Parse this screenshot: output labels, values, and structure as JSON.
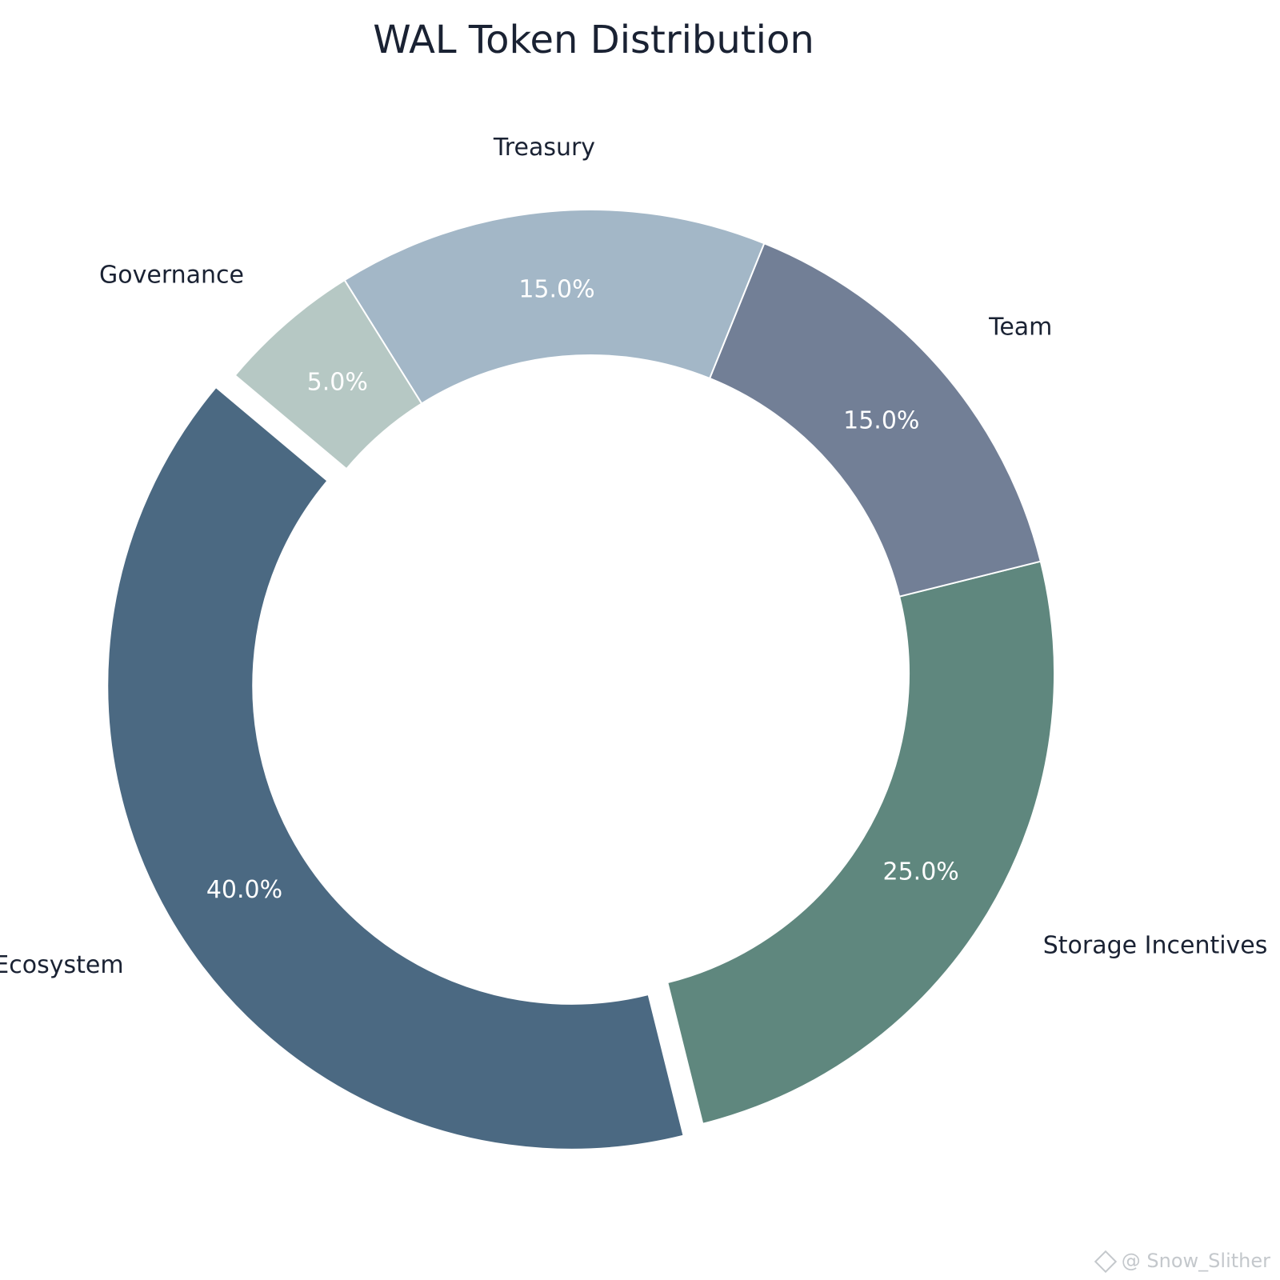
{
  "chart_data": {
    "type": "pie",
    "title": "WAL Token Distribution",
    "donut": true,
    "slices": [
      {
        "label": "Ecosystem",
        "value": 40.0,
        "pct_label": "40.0%",
        "color": "#4b6982",
        "exploded": true
      },
      {
        "label": "Storage Incentives",
        "value": 25.0,
        "pct_label": "25.0%",
        "color": "#5f877e",
        "exploded": false
      },
      {
        "label": "Team",
        "value": 15.0,
        "pct_label": "15.0%",
        "color": "#727f96",
        "exploded": false
      },
      {
        "label": "Treasury",
        "value": 15.0,
        "pct_label": "15.0%",
        "color": "#a3b7c7",
        "exploded": false
      },
      {
        "label": "Governance",
        "value": 5.0,
        "pct_label": "5.0%",
        "color": "#b6c8c4",
        "exploded": false
      }
    ]
  },
  "watermark": {
    "text": "@ Snow_Slither"
  }
}
